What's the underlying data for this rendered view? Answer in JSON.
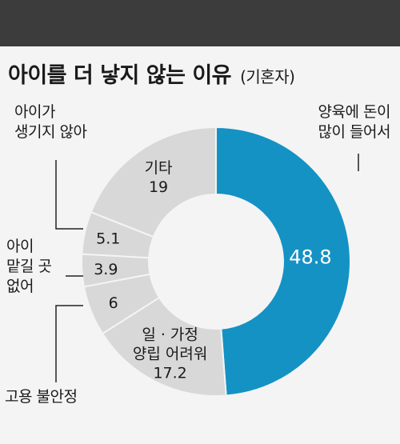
{
  "title": "아이를 더 낳지 않는 이유",
  "subtitle": "(기혼자)",
  "colors": {
    "accent": "#1492c4",
    "slice": "#d8d8d8",
    "divider": "#f4f4f4",
    "leader": "#222222"
  },
  "chart_data": {
    "type": "pie",
    "style": "donut",
    "categories": [
      "양육에 돈이\n많이 들어서",
      "일 · 가정\n양립 어려워",
      "고용 불안정",
      "아이\n맡길 곳\n없어",
      "아이가\n생기지 않아",
      "기타"
    ],
    "values": [
      48.8,
      17.2,
      6,
      3.9,
      5.1,
      19
    ],
    "value_labels": [
      "48.8",
      "17.2",
      "6",
      "3.9",
      "5.1",
      "19"
    ],
    "inner_labels": [
      "",
      "일 · 가정\n양립 어려워",
      "",
      "",
      "",
      "기타"
    ],
    "outer_labels": [
      "양육에 돈이\n많이 들어서",
      "",
      "고용 불안정",
      "아이\n맡길 곳\n없어",
      "아이가\n생기지 않아",
      ""
    ],
    "highlight_index": 0,
    "start": "top",
    "direction": "clockwise"
  }
}
